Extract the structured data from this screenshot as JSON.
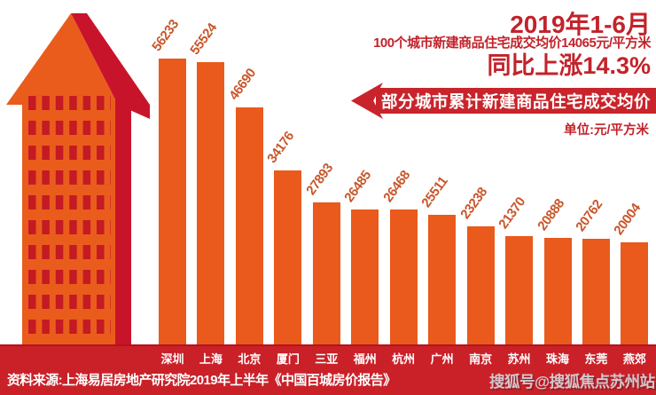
{
  "header": {
    "period": "2019年1-6月",
    "subtitle": "100个城市新建商品住宅成交均价14065元/平方米",
    "yoy": "同比上涨14.3%",
    "banner_title": "部分城市累计新建商品住宅成交均价",
    "unit": "单位:元/平方米"
  },
  "chart_data": {
    "type": "bar",
    "title": "部分城市累计新建商品住宅成交均价",
    "unit_label": "单位:元/平方米",
    "categories": [
      "深圳",
      "上海",
      "北京",
      "厦门",
      "三亚",
      "福州",
      "杭州",
      "广州",
      "南京",
      "苏州",
      "珠海",
      "东莞",
      "燕郊"
    ],
    "values": [
      56233,
      55524,
      46690,
      34176,
      27893,
      26485,
      26468,
      25511,
      23238,
      21370,
      20888,
      20762,
      20004
    ],
    "ylim": [
      0,
      60000
    ],
    "grid": false,
    "legend": "none",
    "value_labels_rotated_deg": -54
  },
  "footer": {
    "source": "资料来源:上海易居房地产研究院2019年上半年《中国百城房价报告》",
    "watermark": "搜狐号@搜狐焦点苏州站"
  },
  "colors": {
    "bar_orange": "#e95a1c",
    "value_label": "#c8562a",
    "dark_red": "#c2232b",
    "ribbon_red": "#c9242b",
    "band_red": "#ca2129",
    "building_orange": "#ea5c1c",
    "building_dark": "#c8142a",
    "window_red": "#c41a24"
  },
  "icons": {
    "building": "arrow-up-building-graphic",
    "ribbon": "left-pointing-ribbon"
  }
}
